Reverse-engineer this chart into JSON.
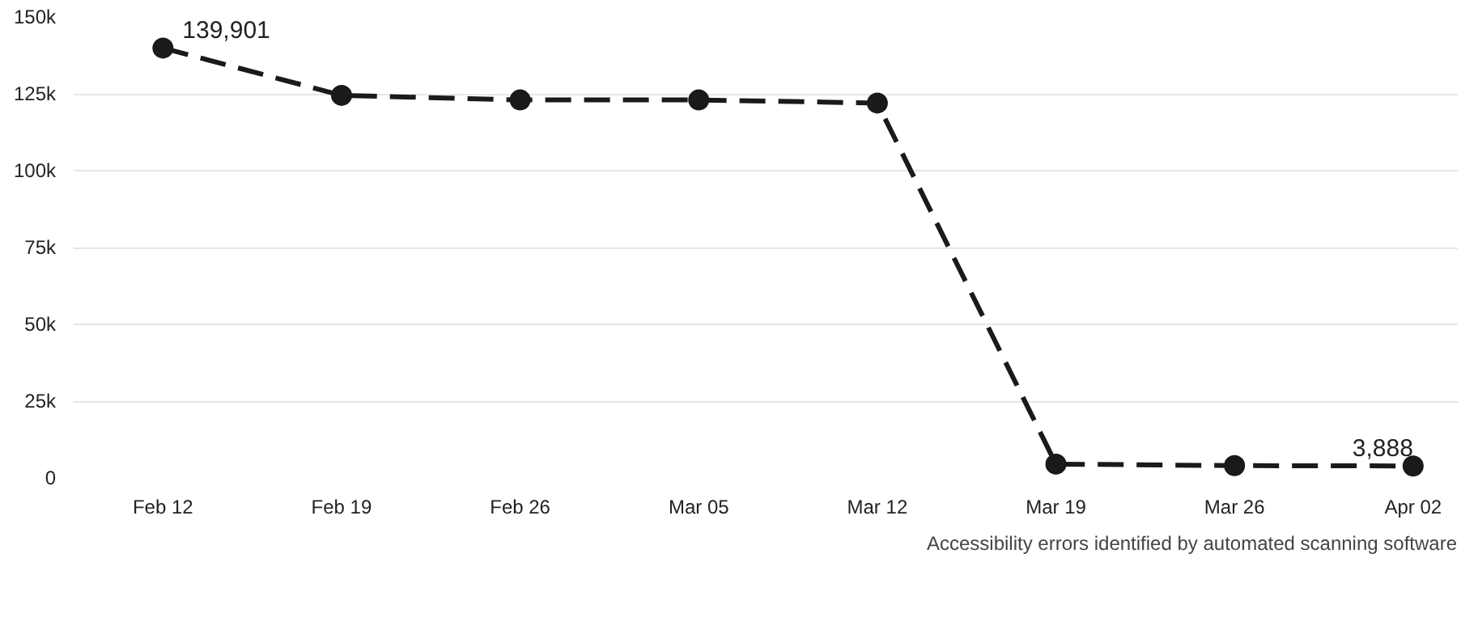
{
  "chart_data": {
    "type": "line",
    "categories": [
      "Feb 12",
      "Feb 19",
      "Feb 26",
      "Mar 05",
      "Mar 12",
      "Mar 19",
      "Mar 26",
      "Apr 02"
    ],
    "series": [
      {
        "name": "Accessibility errors identified by automated scanning software",
        "color": "#1a1a1a",
        "values": [
          139901,
          124500,
          123000,
          123000,
          122000,
          4500,
          4000,
          3888
        ],
        "value_labels": [
          "139,901",
          null,
          null,
          null,
          null,
          null,
          null,
          "3,888"
        ]
      }
    ],
    "ylim": [
      0,
      150000
    ],
    "yticks": [
      0,
      {
        "value": 25000,
        "label": "25k"
      },
      {
        "value": 50000,
        "label": "50k"
      },
      {
        "value": 75000,
        "label": "75k"
      },
      {
        "value": 100000,
        "label": "100k"
      },
      {
        "value": 125000,
        "label": "125k"
      },
      {
        "value": 150000,
        "label": "150k"
      }
    ],
    "grid": "y",
    "legend": "bottom",
    "marker": "circle",
    "line_style": "dashed"
  }
}
